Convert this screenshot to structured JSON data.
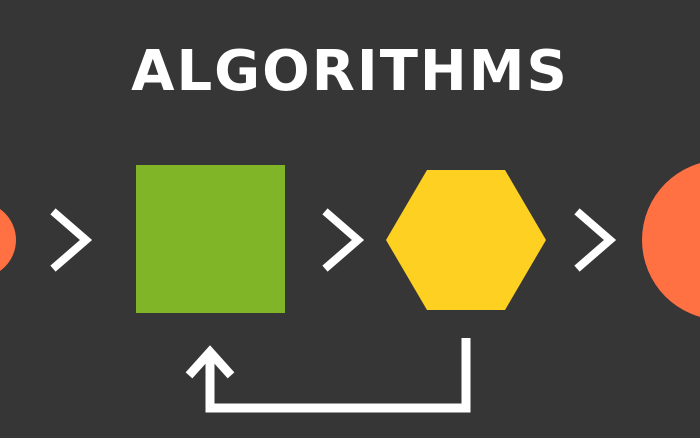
{
  "title": "ALGORITHMS",
  "colors": {
    "background": "#363636",
    "text": "#ffffff",
    "circle": "#ff7043",
    "square": "#7fb527",
    "hexagon": "#fdd022",
    "arrow": "#ffffff"
  },
  "shapes": [
    {
      "kind": "circle",
      "name": "input-circle-partial"
    },
    {
      "kind": "square",
      "name": "process-square"
    },
    {
      "kind": "hexagon",
      "name": "process-hexagon"
    },
    {
      "kind": "circle",
      "name": "output-circle-partial"
    }
  ],
  "icons": [
    "chevron-right-icon",
    "chevron-right-icon",
    "chevron-right-icon",
    "loop-back-arrow-icon"
  ]
}
